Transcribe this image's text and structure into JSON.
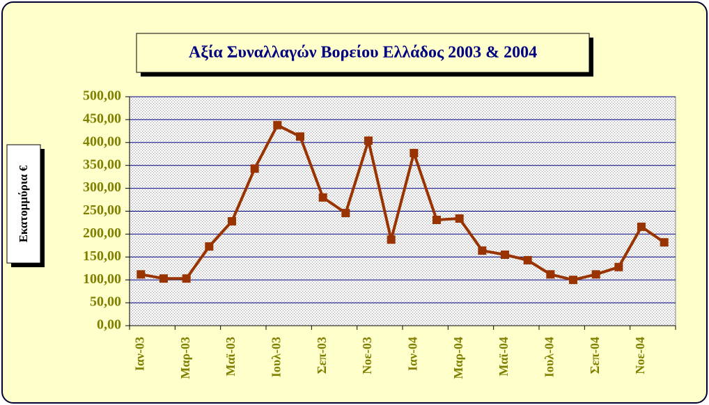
{
  "chart_data": {
    "type": "line",
    "title": "Αξία Συναλλαγών Βορείου Ελλάδος 2003 & 2004",
    "y_label": "Εκατομμύρια €",
    "categories": [
      "Ιαν-03",
      null,
      "Μαρ-03",
      null,
      "Μαϊ-03",
      null,
      "Ιουλ-03",
      null,
      "Σεπ-03",
      null,
      "Νοε-03",
      null,
      "Ιαν-04",
      null,
      "Μαρ-04",
      null,
      "Μαϊ-04",
      null,
      "Ιουλ-04",
      null,
      "Σεπ-04",
      null,
      "Νοε-04",
      null
    ],
    "series": [
      {
        "name": "Αξία Συναλλαγών",
        "color": "#993300",
        "values": [
          112,
          103,
          103,
          173,
          228,
          343,
          438,
          413,
          280,
          246,
          404,
          188,
          377,
          231,
          234,
          164,
          155,
          143,
          112,
          100,
          112,
          128,
          216,
          182
        ]
      }
    ],
    "ylim": [
      0,
      500
    ],
    "yticks": [
      {
        "value": 0,
        "label": "0,00"
      },
      {
        "value": 50,
        "label": "50,00"
      },
      {
        "value": 100,
        "label": "100,00"
      },
      {
        "value": 150,
        "label": "150,00"
      },
      {
        "value": 200,
        "label": "200,00"
      },
      {
        "value": 250,
        "label": "250,00"
      },
      {
        "value": 300,
        "label": "300,00"
      },
      {
        "value": 350,
        "label": "350,00"
      },
      {
        "value": 400,
        "label": "400,00"
      },
      {
        "value": 450,
        "label": "450,00"
      },
      {
        "value": 500,
        "label": "500,00"
      }
    ],
    "grid": true
  }
}
